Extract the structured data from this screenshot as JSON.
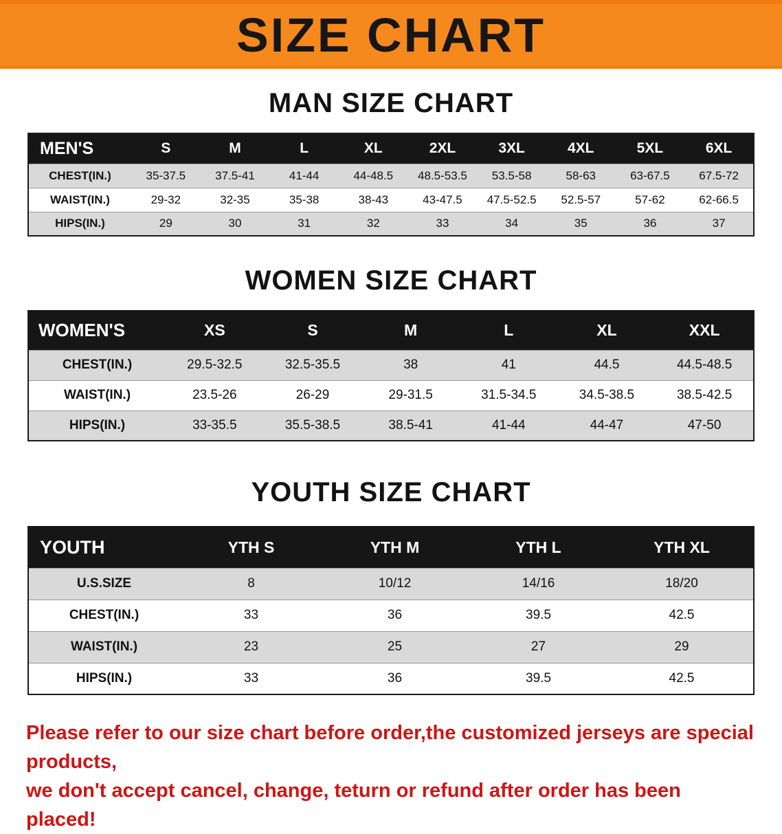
{
  "colors": {
    "banner-bg": "#F6891E",
    "header-bg": "#161616",
    "stripe": "#D9D9D9",
    "warning": "#CE1514"
  },
  "banner": {
    "title": "SIZE CHART"
  },
  "tables": [
    {
      "title": "MAN SIZE CHART",
      "header": [
        "MEN'S",
        "S",
        "M",
        "L",
        "XL",
        "2XL",
        "3XL",
        "4XL",
        "5XL",
        "6XL"
      ],
      "rows": [
        [
          "CHEST(IN.)",
          "35-37.5",
          "37.5-41",
          "41-44",
          "44-48.5",
          "48.5-53.5",
          "53.5-58",
          "58-63",
          "63-67.5",
          "67.5-72"
        ],
        [
          "WAIST(IN.)",
          "29-32",
          "32-35",
          "35-38",
          "38-43",
          "43-47.5",
          "47.5-52.5",
          "52.5-57",
          "57-62",
          "62-66.5"
        ],
        [
          "HIPS(IN.)",
          "29",
          "30",
          "31",
          "32",
          "33",
          "34",
          "35",
          "36",
          "37"
        ]
      ]
    },
    {
      "title": "WOMEN SIZE CHART",
      "header": [
        "WOMEN'S",
        "XS",
        "S",
        "M",
        "L",
        "XL",
        "XXL"
      ],
      "rows": [
        [
          "CHEST(IN.)",
          "29.5-32.5",
          "32.5-35.5",
          "38",
          "41",
          "44.5",
          "44.5-48.5"
        ],
        [
          "WAIST(IN.)",
          "23.5-26",
          "26-29",
          "29-31.5",
          "31.5-34.5",
          "34.5-38.5",
          "38.5-42.5"
        ],
        [
          "HIPS(IN.)",
          "33-35.5",
          "35.5-38.5",
          "38.5-41",
          "41-44",
          "44-47",
          "47-50"
        ]
      ]
    },
    {
      "title": "YOUTH SIZE CHART",
      "header": [
        "YOUTH",
        "YTH S",
        "YTH M",
        "YTH L",
        "YTH XL"
      ],
      "rows": [
        [
          "U.S.SIZE",
          "8",
          "10/12",
          "14/16",
          "18/20"
        ],
        [
          "CHEST(IN.)",
          "33",
          "36",
          "39.5",
          "42.5"
        ],
        [
          "WAIST(IN.)",
          "23",
          "25",
          "27",
          "29"
        ],
        [
          "HIPS(IN.)",
          "33",
          "36",
          "39.5",
          "42.5"
        ]
      ]
    }
  ],
  "footer": {
    "lines": [
      "Please refer to our size chart before order,the customized jerseys are special products,",
      "we don't accept cancel, change, teturn or refund after order has been placed!"
    ]
  }
}
